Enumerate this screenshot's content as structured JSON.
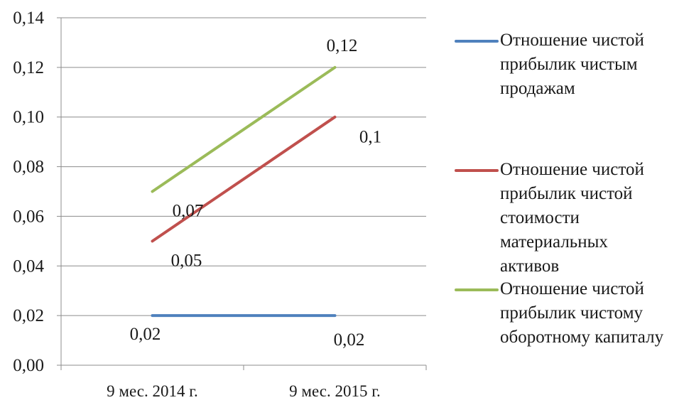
{
  "chart_data": {
    "type": "line",
    "categories": [
      "9 мес. 2014 г.",
      "9 мес. 2015 г."
    ],
    "y_ticks": [
      "0,00",
      "0,02",
      "0,04",
      "0,06",
      "0,08",
      "0,10",
      "0,12",
      "0,14"
    ],
    "ylim": [
      0,
      0.14
    ],
    "grid": true,
    "legend_position": "right",
    "series": [
      {
        "name": "Отношение чистой\nприбылик чистым\nпродажам",
        "color": "#4f81bd",
        "values": [
          0.02,
          0.02
        ],
        "labels": [
          "0,02",
          "0,02"
        ]
      },
      {
        "name": "Отношение чистой\nприбылик чистой\nстоимости\nматериальных\nактивов",
        "color": "#c0504d",
        "values": [
          0.05,
          0.1
        ],
        "labels": [
          "0,05",
          "0,1"
        ]
      },
      {
        "name": "Отношение чистой\nприбылик чистому\nоборотному капиталу",
        "color": "#9bbb59",
        "values": [
          0.07,
          0.12
        ],
        "labels": [
          "0,07",
          "0,12"
        ]
      }
    ]
  }
}
